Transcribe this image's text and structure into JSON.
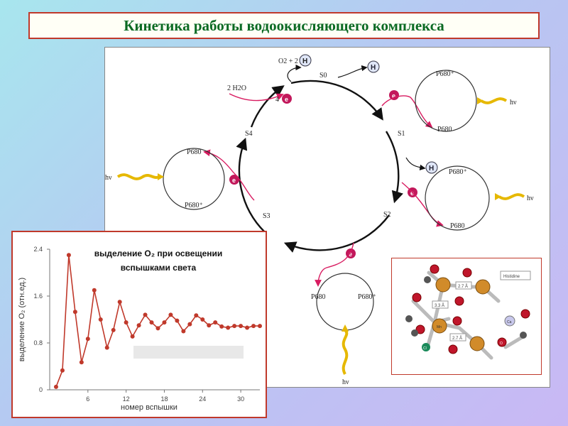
{
  "title": "Кинетика работы водоокисляющего комплекса",
  "cycle": {
    "states": [
      "S0",
      "S1",
      "S2",
      "S3",
      "S4"
    ],
    "products": "O2 + 2",
    "water": "2 H2O",
    "four_e": "4",
    "electron": "e",
    "proton": "H",
    "p680": "P680",
    "p680_plus": "P680⁺",
    "light": "hν"
  },
  "chart_data": {
    "type": "line",
    "title": "выделение O₂ при освещении вспышками света",
    "title_line1": "выделение O₂ при освещении",
    "title_line2": "вспышками света",
    "xlabel": "номер вспышки",
    "ylabel": "выделение O₂ (отн.ед.)",
    "xlim": [
      0,
      33
    ],
    "ylim": [
      0,
      2.4
    ],
    "xticks": [
      "6",
      "12",
      "18",
      "24",
      "30"
    ],
    "yticks": [
      "0",
      "0.8",
      "1.6",
      "2.4"
    ],
    "x": [
      1,
      2,
      3,
      4,
      5,
      6,
      7,
      8,
      9,
      10,
      11,
      12,
      13,
      14,
      15,
      16,
      17,
      18,
      19,
      20,
      21,
      22,
      23,
      24,
      25,
      26,
      27,
      28,
      29,
      30,
      31,
      32,
      33
    ],
    "y": [
      0.05,
      0.33,
      2.3,
      1.33,
      0.47,
      0.87,
      1.7,
      1.2,
      0.72,
      1.02,
      1.5,
      1.15,
      0.91,
      1.1,
      1.28,
      1.15,
      1.05,
      1.15,
      1.28,
      1.18,
      1.0,
      1.12,
      1.27,
      1.2,
      1.1,
      1.15,
      1.08,
      1.06,
      1.09,
      1.09,
      1.06,
      1.09,
      1.09
    ]
  },
  "inset": {
    "histidine": "Histidine",
    "d1": "2.7 Å",
    "d2": "3.3 Å",
    "d3": "2.7 Å",
    "mn": "Mn",
    "ca": "Ca",
    "cl": "Cl",
    "o": "O"
  }
}
